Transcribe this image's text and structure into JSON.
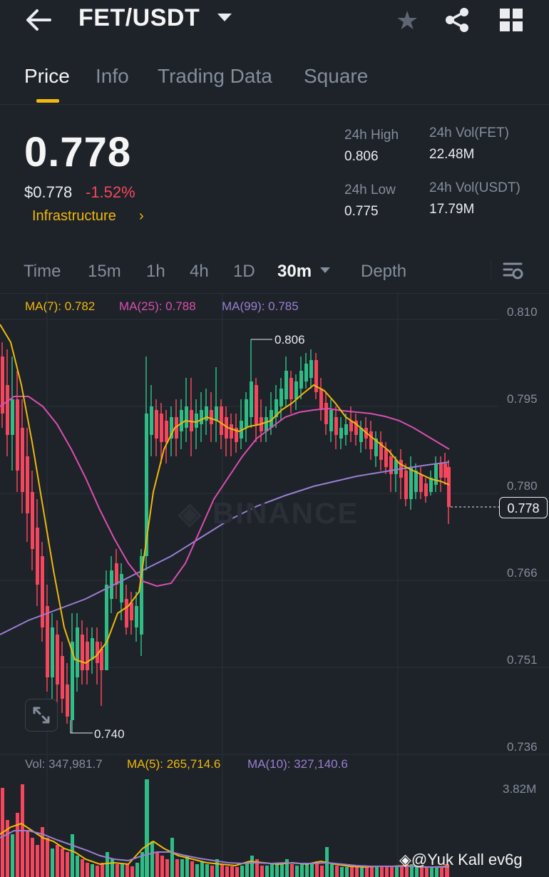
{
  "header": {
    "pair": "FET/USDT"
  },
  "tabs": [
    "Price",
    "Info",
    "Trading Data",
    "Square"
  ],
  "ticker": {
    "last_price": "0.778",
    "usd_price": "$0.778",
    "change": "-1.52%",
    "category": "Infrastructure",
    "high_label": "24h High",
    "high": "0.806",
    "low_label": "24h Low",
    "low": "0.775",
    "vol_base_label": "24h Vol(FET)",
    "vol_base": "22.48M",
    "vol_quote_label": "24h Vol(USDT)",
    "vol_quote": "17.79M"
  },
  "timeframes": [
    "Time",
    "15m",
    "1h",
    "4h",
    "1D",
    "30m",
    "Depth"
  ],
  "active_timeframe": "30m",
  "indicators": {
    "ma7": "MA(7): 0.782",
    "ma25": "MA(25): 0.788",
    "ma99": "MA(99): 0.785"
  },
  "volume_legend": {
    "vol": "Vol: 347,981.7",
    "ma5": "MA(5): 265,714.6",
    "ma10": "MA(10): 327,140.6"
  },
  "watermark": "BINANCE",
  "credit": "@Yuk Kall ev6g",
  "colors": {
    "up": "#2ebd85",
    "down": "#f6465d",
    "accent": "#f0b90b",
    "ma7": "#f0b90b",
    "ma25": "#d94fb0",
    "ma99": "#9a7fd1"
  },
  "chart_data": {
    "type": "candlestick",
    "y_axis_ticks": [
      "0.810",
      "0.795",
      "0.780",
      "0.766",
      "0.751",
      "0.736"
    ],
    "volume_axis_max": "3.82M",
    "current_price": "0.778",
    "high_marker": "0.806",
    "low_marker": "0.740",
    "candles_close": [
      0.79,
      0.793,
      0.786,
      0.781,
      0.776,
      0.77,
      0.762,
      0.752,
      0.748,
      0.744,
      0.75,
      0.757,
      0.756,
      0.753,
      0.76,
      0.764,
      0.77,
      0.764,
      0.773,
      0.79,
      0.792,
      0.788,
      0.791,
      0.793,
      0.789,
      0.792,
      0.795,
      0.791,
      0.789,
      0.798,
      0.794,
      0.791,
      0.795,
      0.801,
      0.798,
      0.803,
      0.797,
      0.792,
      0.789,
      0.787,
      0.789,
      0.785,
      0.783,
      0.779,
      0.784,
      0.781,
      0.779,
      0.781,
      0.782,
      0.778
    ]
  }
}
